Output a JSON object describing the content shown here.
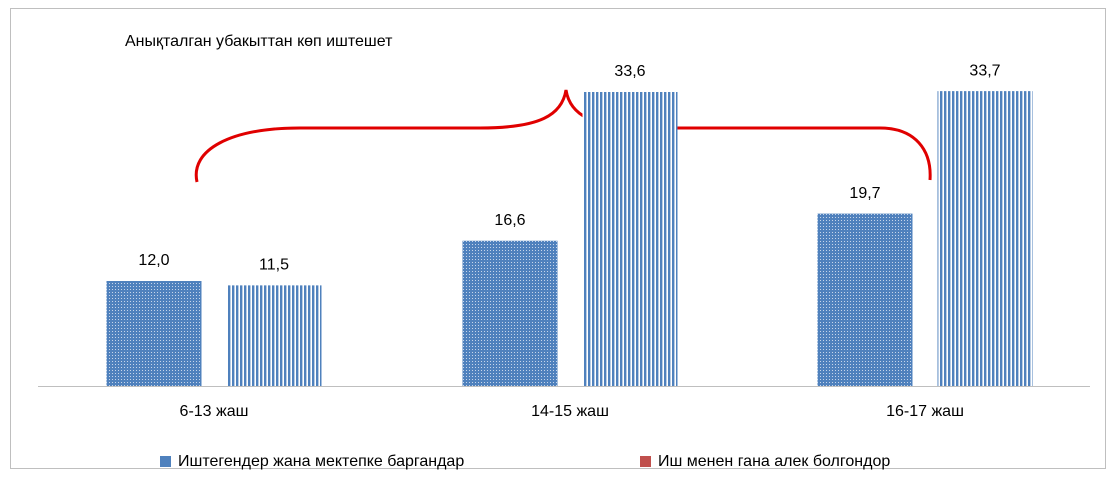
{
  "chart_data": {
    "type": "bar",
    "title": "Анықталган убакыттан көп иштешет",
    "categories": [
      "6-13 жаш",
      "14-15 жаш",
      "16-17 жаш"
    ],
    "series": [
      {
        "name": "Иштегендер жана мектепке баргандар",
        "color": "#4f81bd",
        "legend_color": "#4f81bd",
        "pattern": "dots",
        "values": [
          12.0,
          16.6,
          19.7
        ],
        "value_labels": [
          "12,0",
          "16,6",
          "19,7"
        ]
      },
      {
        "name": "Иш менен гана алек болгондор",
        "color": "#4f81bd",
        "legend_color": "#c0504d",
        "pattern": "stripes",
        "values": [
          11.5,
          33.6,
          33.7
        ],
        "value_labels": [
          "11,5",
          "33,6",
          "33,7"
        ]
      }
    ],
    "ylim": [
      0,
      40
    ]
  }
}
